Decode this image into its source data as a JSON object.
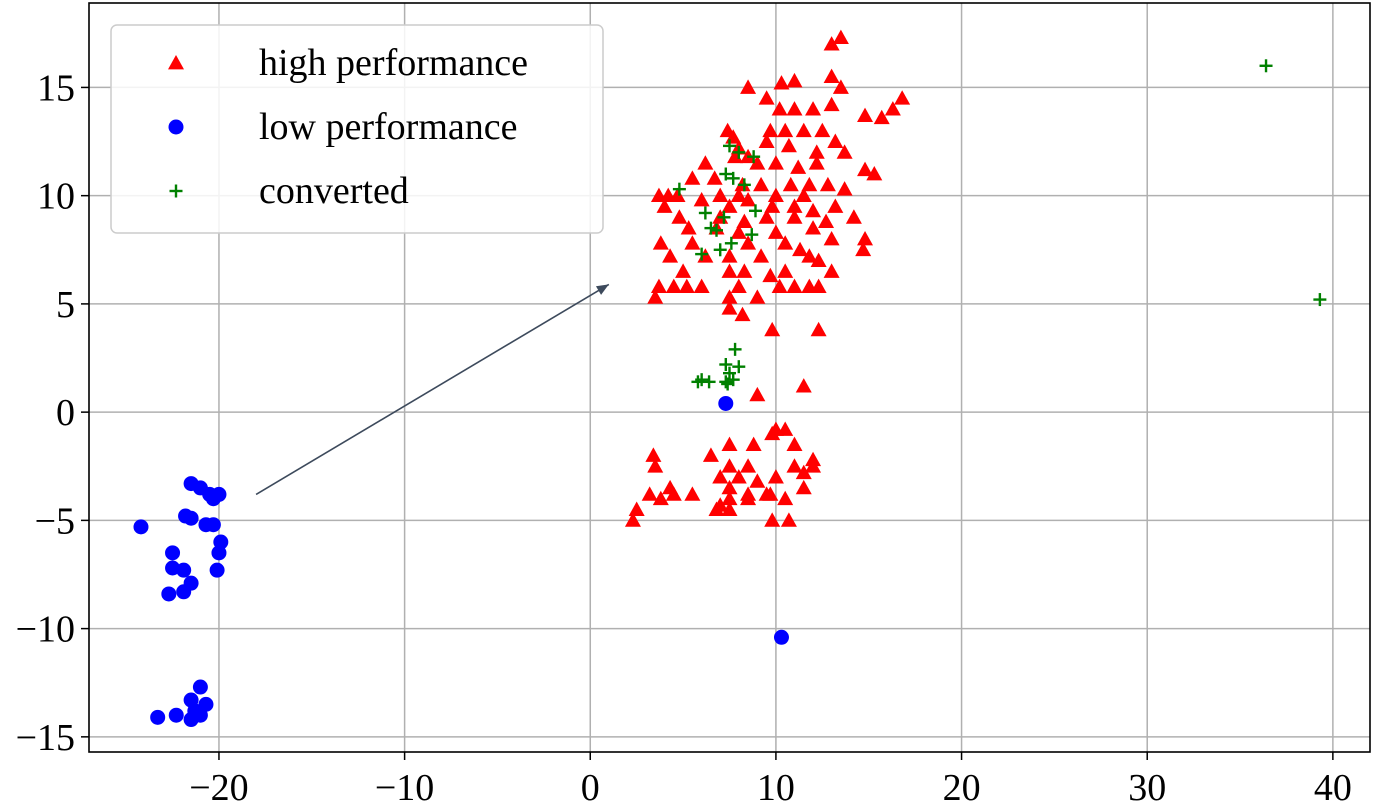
{
  "chart_data": {
    "type": "scatter",
    "xlim": [
      -27,
      42
    ],
    "ylim": [
      -15.7,
      18.9
    ],
    "x_ticks": [
      -20,
      -10,
      0,
      10,
      20,
      30,
      40
    ],
    "y_ticks": [
      -15,
      -10,
      -5,
      0,
      5,
      10,
      15
    ],
    "x_tick_labels": [
      "−20",
      "−10",
      "0",
      "10",
      "20",
      "30",
      "40"
    ],
    "y_tick_labels": [
      "−15",
      "−10",
      "−5",
      "0",
      "5",
      "10",
      "15"
    ],
    "grid": true,
    "legend_position": "top-left",
    "annotation_arrow": {
      "from": [
        -18,
        -3.8
      ],
      "to": [
        1,
        5.9
      ]
    },
    "series": [
      {
        "name": "high performance",
        "marker": "triangle",
        "color": "#ff0000",
        "points": [
          [
            13.0,
            17.0
          ],
          [
            13.5,
            17.3
          ],
          [
            11.0,
            15.3
          ],
          [
            10.3,
            15.2
          ],
          [
            8.5,
            15.0
          ],
          [
            13.0,
            15.5
          ],
          [
            13.5,
            15.0
          ],
          [
            16.8,
            14.5
          ],
          [
            16.3,
            14.0
          ],
          [
            9.5,
            14.5
          ],
          [
            10.2,
            14.0
          ],
          [
            11.0,
            14.0
          ],
          [
            12.0,
            14.0
          ],
          [
            13.0,
            14.2
          ],
          [
            14.8,
            13.7
          ],
          [
            15.7,
            13.6
          ],
          [
            7.4,
            13.0
          ],
          [
            7.7,
            12.7
          ],
          [
            9.7,
            13.0
          ],
          [
            10.5,
            13.0
          ],
          [
            11.5,
            13.0
          ],
          [
            12.5,
            13.0
          ],
          [
            13.2,
            12.5
          ],
          [
            8.0,
            12.2
          ],
          [
            9.5,
            12.5
          ],
          [
            10.7,
            12.3
          ],
          [
            12.2,
            12.0
          ],
          [
            13.7,
            12.0
          ],
          [
            7.8,
            11.8
          ],
          [
            8.5,
            11.8
          ],
          [
            6.2,
            11.5
          ],
          [
            9.0,
            11.5
          ],
          [
            10.0,
            11.5
          ],
          [
            11.2,
            11.3
          ],
          [
            12.2,
            11.5
          ],
          [
            14.8,
            11.2
          ],
          [
            15.3,
            11.0
          ],
          [
            5.5,
            10.8
          ],
          [
            6.7,
            10.8
          ],
          [
            8.2,
            10.5
          ],
          [
            9.2,
            10.5
          ],
          [
            10.8,
            10.5
          ],
          [
            11.8,
            10.5
          ],
          [
            12.8,
            10.5
          ],
          [
            13.7,
            10.3
          ],
          [
            3.7,
            10.0
          ],
          [
            4.2,
            10.0
          ],
          [
            4.7,
            10.0
          ],
          [
            6.0,
            9.8
          ],
          [
            7.0,
            10.0
          ],
          [
            8.0,
            10.0
          ],
          [
            10.0,
            10.0
          ],
          [
            11.5,
            10.0
          ],
          [
            4.0,
            9.5
          ],
          [
            7.5,
            9.5
          ],
          [
            8.5,
            9.8
          ],
          [
            9.8,
            9.5
          ],
          [
            11.0,
            9.5
          ],
          [
            12.0,
            9.3
          ],
          [
            13.2,
            9.5
          ],
          [
            4.8,
            9.0
          ],
          [
            7.0,
            9.0
          ],
          [
            8.3,
            8.8
          ],
          [
            9.5,
            9.0
          ],
          [
            11.0,
            9.0
          ],
          [
            12.7,
            8.8
          ],
          [
            14.2,
            9.0
          ],
          [
            5.3,
            8.5
          ],
          [
            6.8,
            8.5
          ],
          [
            8.0,
            8.3
          ],
          [
            10.0,
            8.3
          ],
          [
            12.0,
            8.5
          ],
          [
            13.0,
            8.0
          ],
          [
            14.8,
            8.0
          ],
          [
            3.8,
            7.8
          ],
          [
            5.5,
            7.8
          ],
          [
            8.5,
            7.8
          ],
          [
            10.5,
            7.8
          ],
          [
            11.3,
            7.5
          ],
          [
            14.7,
            7.5
          ],
          [
            4.3,
            7.2
          ],
          [
            6.2,
            7.2
          ],
          [
            7.5,
            7.2
          ],
          [
            9.2,
            7.2
          ],
          [
            11.8,
            7.2
          ],
          [
            12.3,
            7.0
          ],
          [
            5.0,
            6.5
          ],
          [
            7.5,
            6.5
          ],
          [
            8.3,
            6.5
          ],
          [
            9.7,
            6.3
          ],
          [
            10.5,
            6.5
          ],
          [
            13.0,
            6.5
          ],
          [
            3.7,
            5.8
          ],
          [
            4.5,
            5.8
          ],
          [
            5.2,
            5.8
          ],
          [
            6.0,
            5.8
          ],
          [
            8.0,
            5.8
          ],
          [
            10.2,
            5.8
          ],
          [
            11.0,
            5.8
          ],
          [
            11.8,
            5.8
          ],
          [
            12.3,
            5.8
          ],
          [
            3.5,
            5.3
          ],
          [
            7.5,
            5.3
          ],
          [
            9.0,
            5.3
          ],
          [
            7.5,
            4.8
          ],
          [
            8.2,
            4.5
          ],
          [
            12.3,
            3.8
          ],
          [
            9.8,
            3.8
          ],
          [
            11.5,
            1.2
          ],
          [
            9.0,
            0.8
          ],
          [
            10.0,
            -0.8
          ],
          [
            10.5,
            -0.8
          ],
          [
            9.8,
            -1.0
          ],
          [
            11.0,
            -1.5
          ],
          [
            7.5,
            -1.5
          ],
          [
            8.8,
            -1.5
          ],
          [
            12.0,
            -2.2
          ],
          [
            3.4,
            -2.0
          ],
          [
            3.5,
            -2.5
          ],
          [
            6.5,
            -2.0
          ],
          [
            7.5,
            -2.5
          ],
          [
            8.5,
            -2.5
          ],
          [
            11.0,
            -2.5
          ],
          [
            7.0,
            -3.0
          ],
          [
            8.0,
            -3.0
          ],
          [
            10.0,
            -3.0
          ],
          [
            11.5,
            -2.8
          ],
          [
            12.0,
            -2.5
          ],
          [
            4.3,
            -3.5
          ],
          [
            7.5,
            -3.5
          ],
          [
            9.0,
            -3.2
          ],
          [
            11.5,
            -3.5
          ],
          [
            3.2,
            -3.8
          ],
          [
            4.5,
            -3.8
          ],
          [
            5.5,
            -3.8
          ],
          [
            8.5,
            -3.8
          ],
          [
            9.5,
            -3.8
          ],
          [
            2.5,
            -4.5
          ],
          [
            7.5,
            -4.0
          ],
          [
            8.5,
            -4.0
          ],
          [
            9.7,
            -3.8
          ],
          [
            10.5,
            -4.0
          ],
          [
            2.3,
            -5.0
          ],
          [
            3.8,
            -4.0
          ],
          [
            6.8,
            -4.5
          ],
          [
            7.0,
            -4.3
          ],
          [
            7.5,
            -4.5
          ],
          [
            9.8,
            -5.0
          ],
          [
            10.7,
            -5.0
          ]
        ]
      },
      {
        "name": "low performance",
        "marker": "circle",
        "color": "#0000ff",
        "points": [
          [
            -21.5,
            -3.3
          ],
          [
            -21.0,
            -3.5
          ],
          [
            -20.5,
            -3.8
          ],
          [
            -20.3,
            -4.0
          ],
          [
            -20.0,
            -3.8
          ],
          [
            -24.2,
            -5.3
          ],
          [
            -21.8,
            -4.8
          ],
          [
            -21.5,
            -4.9
          ],
          [
            -20.7,
            -5.2
          ],
          [
            -20.3,
            -5.2
          ],
          [
            -19.9,
            -6.0
          ],
          [
            -20.0,
            -6.5
          ],
          [
            -22.5,
            -6.5
          ],
          [
            -22.5,
            -7.2
          ],
          [
            -21.9,
            -7.3
          ],
          [
            -20.1,
            -7.3
          ],
          [
            -21.5,
            -7.9
          ],
          [
            -22.7,
            -8.4
          ],
          [
            -21.9,
            -8.3
          ],
          [
            -21.0,
            -12.7
          ],
          [
            -21.5,
            -13.3
          ],
          [
            -20.7,
            -13.5
          ],
          [
            -21.3,
            -13.8
          ],
          [
            -22.3,
            -14.0
          ],
          [
            -21.0,
            -14.0
          ],
          [
            -23.3,
            -14.1
          ],
          [
            -21.5,
            -14.2
          ],
          [
            7.3,
            0.4
          ],
          [
            10.3,
            -10.4
          ]
        ]
      },
      {
        "name": "converted",
        "marker": "plus",
        "color": "#008000",
        "points": [
          [
            36.4,
            16.0
          ],
          [
            39.3,
            5.2
          ],
          [
            7.5,
            12.3
          ],
          [
            8.0,
            12.0
          ],
          [
            8.8,
            11.8
          ],
          [
            7.3,
            11.0
          ],
          [
            8.3,
            10.5
          ],
          [
            7.7,
            10.8
          ],
          [
            4.8,
            10.3
          ],
          [
            6.2,
            9.2
          ],
          [
            8.9,
            9.3
          ],
          [
            7.2,
            9.0
          ],
          [
            6.5,
            8.5
          ],
          [
            6.8,
            8.4
          ],
          [
            8.7,
            8.2
          ],
          [
            7.6,
            7.8
          ],
          [
            6.0,
            7.3
          ],
          [
            7.0,
            7.5
          ],
          [
            7.8,
            2.9
          ],
          [
            7.3,
            2.2
          ],
          [
            8.0,
            2.1
          ],
          [
            7.5,
            1.8
          ],
          [
            6.0,
            1.5
          ],
          [
            5.8,
            1.4
          ],
          [
            7.3,
            1.4
          ],
          [
            7.7,
            1.5
          ],
          [
            6.4,
            1.4
          ],
          [
            7.4,
            1.3
          ]
        ]
      }
    ]
  }
}
